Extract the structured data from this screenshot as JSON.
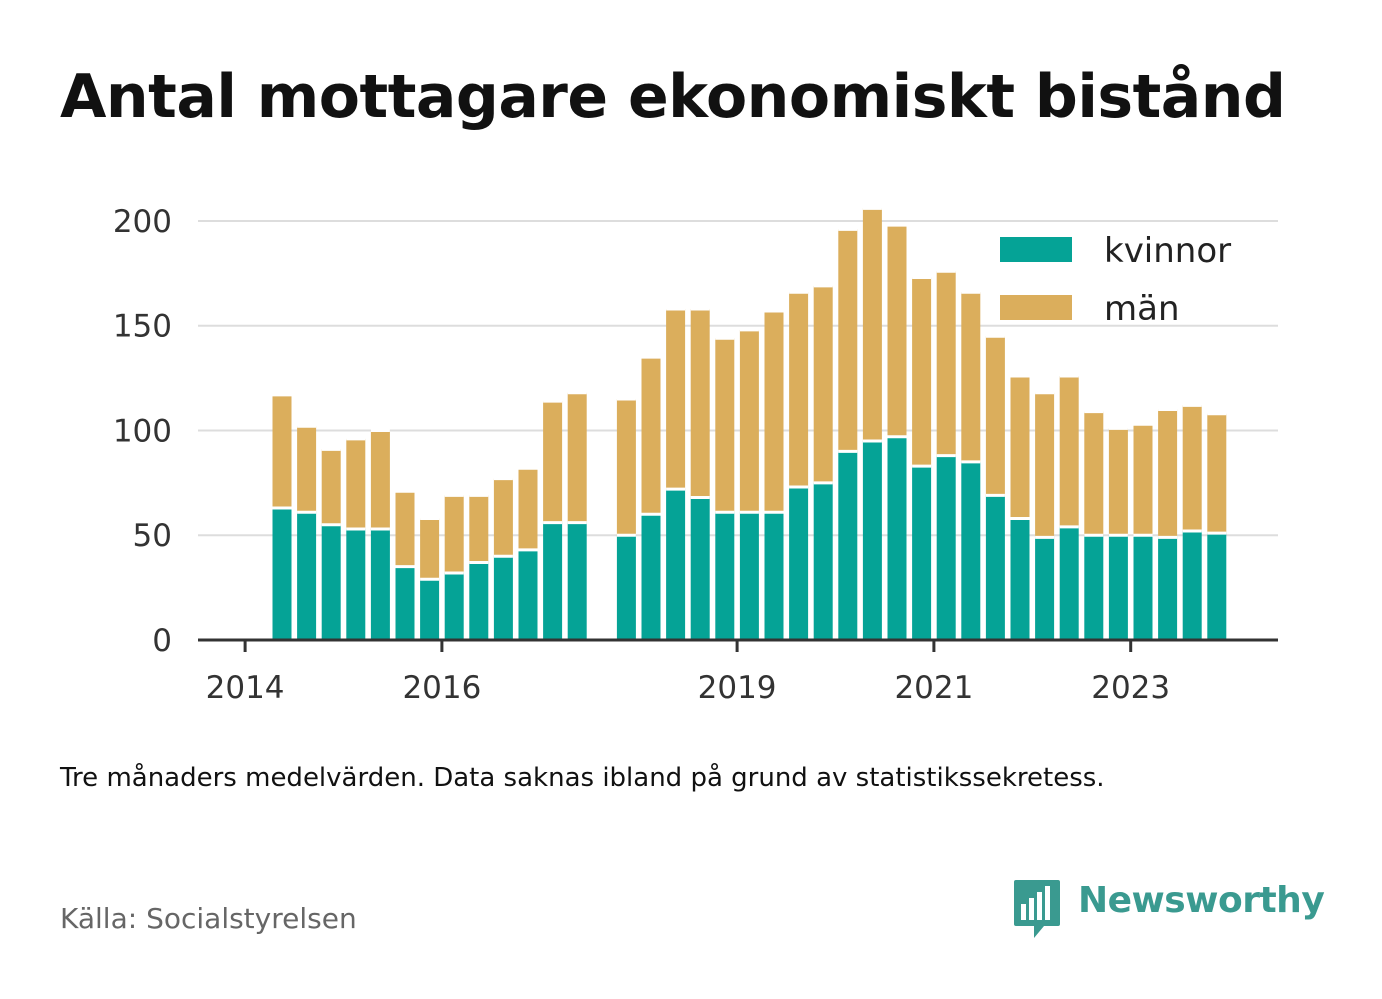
{
  "title": "Antal mottagare ekonomiskt bistånd",
  "note": "Tre månaders medelvärden. Data saknas ibland på grund av statistikssekretess.",
  "source": "Källa: Socialstyrelsen",
  "brand": {
    "name": "Newsworthy",
    "icon": "newsworthy-logo-icon",
    "color": "#3a9a90"
  },
  "colors": {
    "kvinnor": "#05a396",
    "man": "#dbae5c",
    "grid": "#dddddd",
    "axis": "#333333"
  },
  "chart_data": {
    "type": "bar",
    "stacked": true,
    "title": "Antal mottagare ekonomiskt bistånd",
    "xlabel": "",
    "ylabel": "",
    "ylim": [
      0,
      210
    ],
    "y_ticks": [
      0,
      50,
      100,
      150,
      200
    ],
    "x_tick_labels": [
      "2014",
      "2016",
      "2019",
      "2021",
      "2023"
    ],
    "grid": true,
    "legend": "top-right",
    "series": [
      {
        "name": "kvinnor",
        "color": "#05a396",
        "values": [
          63,
          61,
          55,
          53,
          53,
          35,
          29,
          32,
          37,
          40,
          43,
          56,
          56,
          null,
          50,
          60,
          72,
          68,
          61,
          61,
          61,
          73,
          75,
          90,
          95,
          97,
          83,
          88,
          85,
          69,
          58,
          49,
          54,
          50,
          50,
          50,
          49,
          52,
          51
        ]
      },
      {
        "name": "män",
        "color": "#dbae5c",
        "values": [
          54,
          41,
          36,
          43,
          47,
          36,
          29,
          37,
          32,
          37,
          39,
          58,
          62,
          null,
          65,
          75,
          86,
          90,
          83,
          87,
          96,
          93,
          94,
          106,
          111,
          101,
          90,
          88,
          81,
          76,
          68,
          69,
          72,
          59,
          51,
          53,
          61,
          60,
          57
        ]
      }
    ]
  }
}
